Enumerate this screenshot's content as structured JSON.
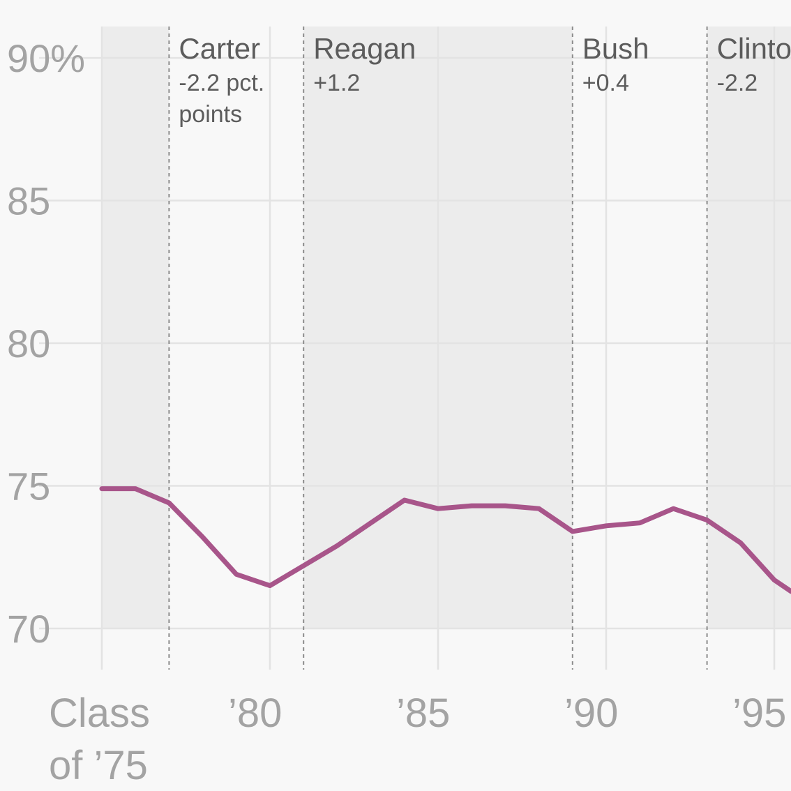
{
  "chart_data": {
    "type": "line",
    "title": "",
    "xlabel": "",
    "ylabel": "",
    "xlim": [
      1975,
      1995.5
    ],
    "ylim": [
      70,
      91.5
    ],
    "y_ticks": [
      {
        "value": 90,
        "label": "90%"
      },
      {
        "value": 85,
        "label": "85"
      },
      {
        "value": 80,
        "label": "80"
      },
      {
        "value": 75,
        "label": "75"
      },
      {
        "value": 70,
        "label": "70"
      }
    ],
    "x_ticks": [
      {
        "value": 1975,
        "label": "Class",
        "label2": "of ’75"
      },
      {
        "value": 1980,
        "label": "’80"
      },
      {
        "value": 1985,
        "label": "’85"
      },
      {
        "value": 1990,
        "label": "’90"
      },
      {
        "value": 1995,
        "label": "’95"
      }
    ],
    "grid": true,
    "series": [
      {
        "color": "#a8558a",
        "x": [
          1975,
          1976,
          1977,
          1978,
          1979,
          1980,
          1981,
          1982,
          1983,
          1984,
          1985,
          1986,
          1987,
          1988,
          1989,
          1990,
          1991,
          1992,
          1993,
          1994,
          1995,
          1995.5
        ],
        "values": [
          74.9,
          74.9,
          74.4,
          73.2,
          71.9,
          71.5,
          72.2,
          72.9,
          73.7,
          74.5,
          74.2,
          74.3,
          74.3,
          74.2,
          73.4,
          73.6,
          73.7,
          74.2,
          73.8,
          73.0,
          71.7,
          71.3
        ]
      }
    ],
    "presidencies": [
      {
        "name": "Carter",
        "change": "-2.2 pct.",
        "change2": "points",
        "start": 1977,
        "end": 1981,
        "shaded": false
      },
      {
        "name": "Reagan",
        "change": "+1.2",
        "change2": "",
        "start": 1981,
        "end": 1989,
        "shaded": true
      },
      {
        "name": "Bush",
        "change": "+0.4",
        "change2": "",
        "start": 1989,
        "end": 1993,
        "shaded": false
      },
      {
        "name": "Clinton",
        "change": "-2.2",
        "change2": "",
        "start": 1993,
        "end": 2001,
        "shaded": true
      }
    ],
    "pre_period": {
      "start": 1975,
      "end": 1977,
      "shaded": true
    },
    "colors": {
      "background": "#f8f8f8",
      "shade": "#ececec",
      "grid": "#e3e3e3",
      "divider": "#8c8c8c",
      "tick_text": "#a3a3a3",
      "annotation_text": "#5c5c5c",
      "line": "#a8558a"
    }
  }
}
